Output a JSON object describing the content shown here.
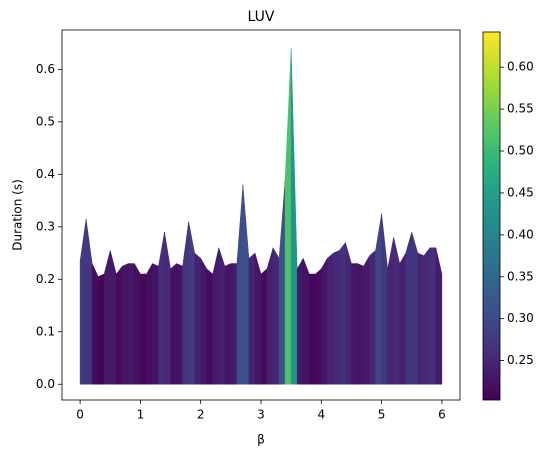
{
  "chart_data": {
    "type": "area",
    "title": "LUV",
    "x_label": "β",
    "y_label": "Duration (s)",
    "x": [
      0.0,
      0.1,
      0.2,
      0.3,
      0.4,
      0.5,
      0.6,
      0.7,
      0.8,
      0.9,
      1.0,
      1.1,
      1.2,
      1.3,
      1.4,
      1.5,
      1.6,
      1.7,
      1.8,
      1.9,
      2.0,
      2.1,
      2.2,
      2.3,
      2.4,
      2.5,
      2.6,
      2.7,
      2.8,
      2.9,
      3.0,
      3.1,
      3.2,
      3.3,
      3.4,
      3.5,
      3.6,
      3.7,
      3.8,
      3.9,
      4.0,
      4.1,
      4.2,
      4.3,
      4.4,
      4.5,
      4.6,
      4.7,
      4.8,
      4.9,
      5.0,
      5.1,
      5.2,
      5.3,
      5.4,
      5.5,
      5.6,
      5.7,
      5.8,
      5.9,
      6.0
    ],
    "values": [
      0.235,
      0.315,
      0.23,
      0.205,
      0.21,
      0.255,
      0.21,
      0.225,
      0.23,
      0.23,
      0.21,
      0.21,
      0.23,
      0.225,
      0.29,
      0.22,
      0.23,
      0.225,
      0.31,
      0.25,
      0.24,
      0.22,
      0.21,
      0.26,
      0.225,
      0.23,
      0.23,
      0.38,
      0.24,
      0.25,
      0.21,
      0.22,
      0.26,
      0.24,
      0.39,
      0.64,
      0.22,
      0.24,
      0.21,
      0.21,
      0.22,
      0.24,
      0.25,
      0.255,
      0.27,
      0.23,
      0.23,
      0.225,
      0.245,
      0.255,
      0.325,
      0.22,
      0.28,
      0.23,
      0.25,
      0.29,
      0.25,
      0.245,
      0.26,
      0.26,
      0.21
    ],
    "colormap": "viridis",
    "clim": [
      0.203,
      0.642
    ],
    "xlim": [
      -0.3,
      6.3
    ],
    "xticks": [
      0,
      1,
      2,
      3,
      4,
      5,
      6
    ],
    "ylim": [
      -0.03,
      0.675
    ],
    "yticks": [
      {
        "value": 0,
        "label": "0.0"
      },
      {
        "value": 0.1,
        "label": "0.1"
      },
      {
        "value": 0.2,
        "label": "0.2"
      },
      {
        "value": 0.3,
        "label": "0.3"
      },
      {
        "value": 0.4,
        "label": "0.4"
      },
      {
        "value": 0.5,
        "label": "0.5"
      },
      {
        "value": 0.6,
        "label": "0.6"
      }
    ],
    "cticks": [
      0.25,
      {
        "value": 0.3,
        "label": "0.30"
      },
      0.35,
      {
        "value": 0.4,
        "label": "0.40"
      },
      0.45,
      {
        "value": 0.5,
        "label": "0.50"
      },
      0.55,
      {
        "value": 0.6,
        "label": "0.60"
      }
    ]
  }
}
